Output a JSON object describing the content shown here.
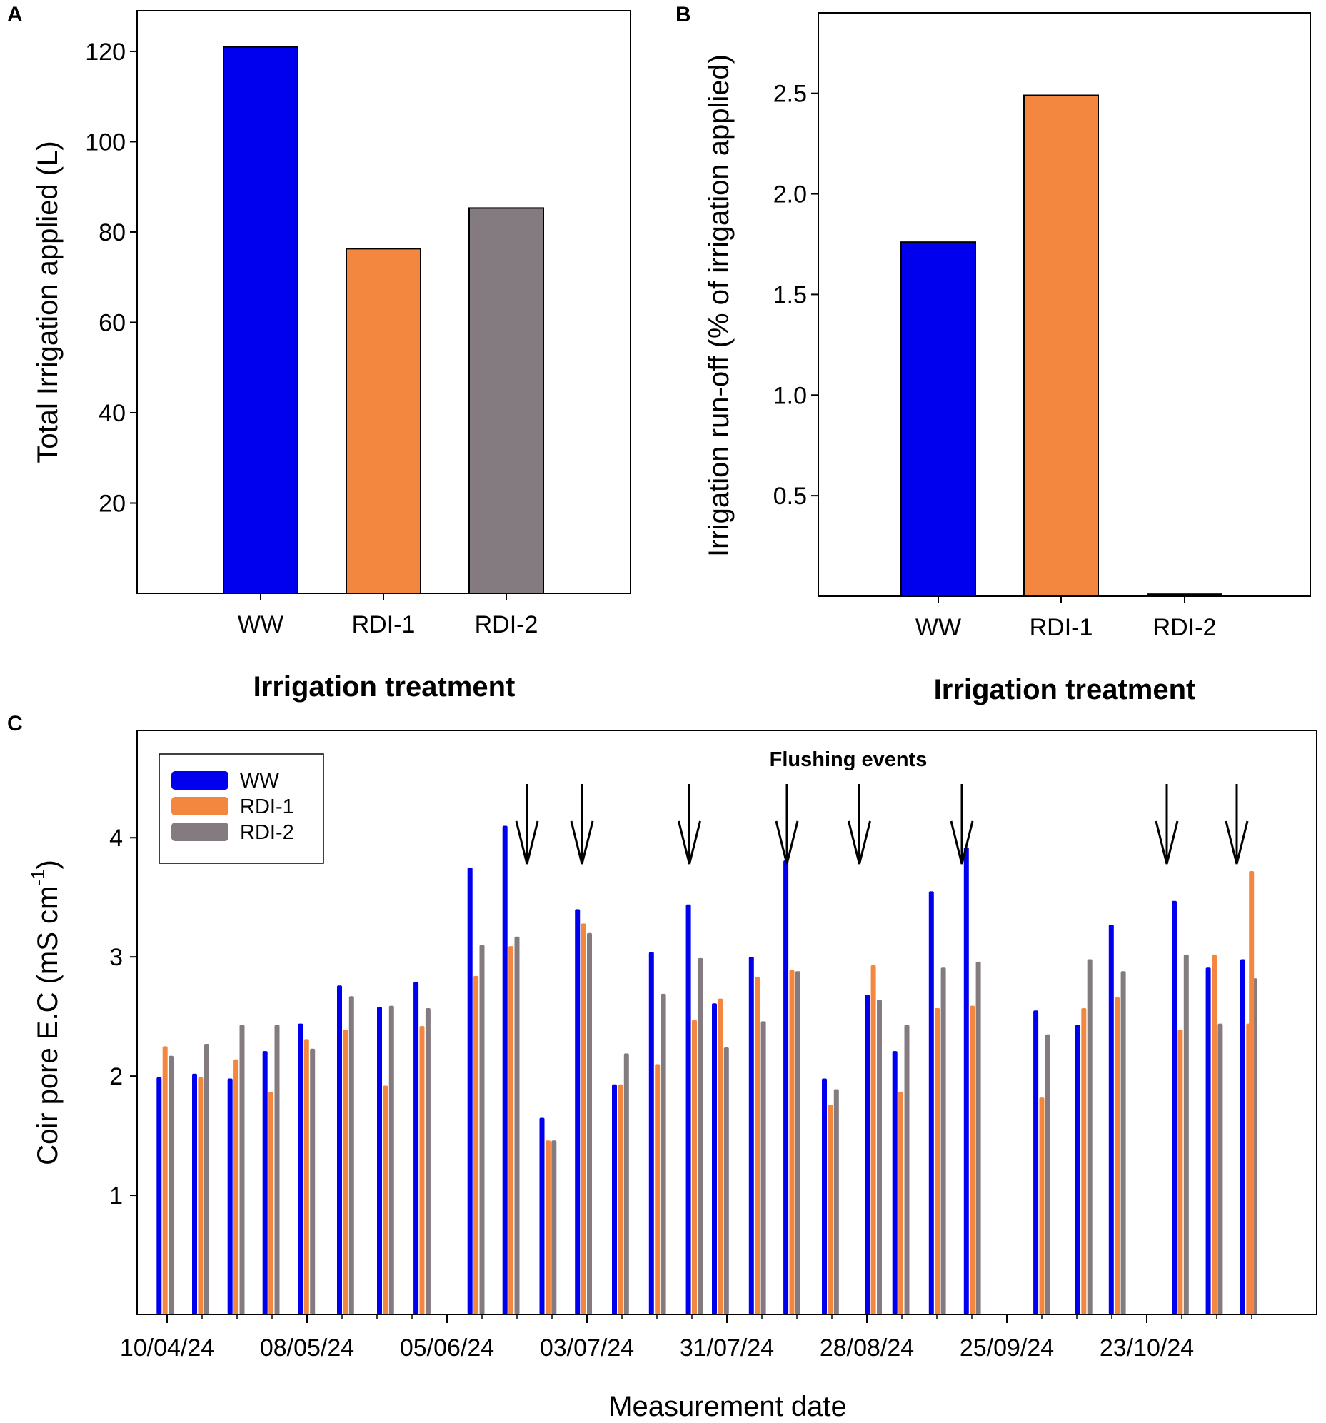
{
  "colors": {
    "ww": "#0000ee",
    "rdi1": "#f4873f",
    "rdi2": "#847b81"
  },
  "chart_data": [
    {
      "panel": "A",
      "type": "bar",
      "categories": [
        "WW",
        "RDI-1",
        "RDI-2"
      ],
      "values": [
        121,
        76.3,
        85.3
      ],
      "xlabel": "Irrigation treatment",
      "ylabel": "Total Irrigation applied (L)",
      "ylim": [
        0,
        129
      ],
      "yticks": [
        20,
        40,
        60,
        80,
        100,
        120
      ]
    },
    {
      "panel": "B",
      "type": "bar",
      "categories": [
        "WW",
        "RDI-1",
        "RDI-2"
      ],
      "values": [
        1.76,
        2.49,
        0.01
      ],
      "xlabel": "Irrigation treatment",
      "ylabel": "Irrigation run-off (% of irrigation applied)",
      "ylim": [
        0,
        2.9
      ],
      "yticks": [
        "0.5",
        "1.0",
        "1.5",
        "2.0",
        "2.5"
      ]
    },
    {
      "panel": "C",
      "type": "bar",
      "xlabel": "Measurement date",
      "ylabel": "Coir pore E.C (mS cm",
      "ylabel_sup": "-1",
      "ylabel_end": ")",
      "ylim": [
        0,
        4.9
      ],
      "yticks": [
        1,
        2,
        3,
        4
      ],
      "xlim_days": [
        -6,
        230
      ],
      "xticks": [
        {
          "day": 0,
          "label": "10/04/24"
        },
        {
          "day": 28,
          "label": "08/05/24"
        },
        {
          "day": 56,
          "label": "05/06/24"
        },
        {
          "day": 84,
          "label": "03/07/24"
        },
        {
          "day": 112,
          "label": "31/07/24"
        },
        {
          "day": 140,
          "label": "28/08/24"
        },
        {
          "day": 168,
          "label": "25/09/24"
        },
        {
          "day": 196,
          "label": "23/10/24"
        }
      ],
      "legend": [
        "WW",
        "RDI-1",
        "RDI-2"
      ],
      "annotation": "Flushing events",
      "flushing_event_days": [
        72,
        83,
        104.5,
        124,
        138.5,
        159,
        200,
        214
      ],
      "series": [
        {
          "name": "WW",
          "days": [
            -1.6,
            5.5,
            12.6,
            19.6,
            26.7,
            34.5,
            42.5,
            49.8,
            60.6,
            67.6,
            75,
            82.1,
            89.5,
            96.9,
            104.3,
            109.5,
            116.9,
            123.8,
            131.5,
            140.1,
            145.6,
            152.9,
            159.9,
            173.8,
            182.2,
            188.9,
            201.5,
            208.3,
            215.2
          ],
          "values": [
            1.99,
            2.02,
            1.98,
            2.21,
            2.44,
            2.76,
            2.58,
            2.79,
            3.75,
            4.1,
            1.65,
            3.4,
            1.93,
            3.04,
            3.44,
            2.61,
            3.0,
            3.81,
            1.98,
            2.68,
            2.21,
            3.55,
            3.92,
            2.55,
            2.43,
            3.27,
            3.47,
            2.91,
            2.98
          ]
        },
        {
          "name": "RDI-1",
          "days": [
            -0.4,
            6.7,
            13.8,
            20.8,
            27.9,
            35.7,
            43.7,
            51,
            61.8,
            68.8,
            76.2,
            83.3,
            90.7,
            98.1,
            105.5,
            110.7,
            118.1,
            125,
            132.7,
            141.3,
            146.8,
            154.1,
            161.1,
            175,
            183.4,
            190.1,
            202.7,
            209.5,
            216.4
          ],
          "values": [
            2.25,
            1.99,
            2.14,
            1.87,
            2.31,
            2.39,
            1.92,
            2.42,
            2.84,
            3.09,
            1.46,
            3.28,
            1.93,
            2.1,
            2.47,
            2.65,
            2.83,
            2.89,
            1.76,
            2.93,
            1.87,
            2.57,
            2.59,
            1.82,
            2.57,
            2.66,
            2.39,
            3.02,
            2.44
          ]
        },
        {
          "name": "RDI-2",
          "days": [
            0.8,
            7.9,
            15,
            22,
            29.1,
            36.9,
            44.9,
            52.2,
            63,
            70,
            77.4,
            84.5,
            91.9,
            99.3,
            106.7,
            111.9,
            119.3,
            126.2,
            133.9,
            142.5,
            148,
            155.3,
            162.3,
            176.2,
            184.6,
            191.3,
            203.9,
            210.7,
            217.6
          ],
          "values": [
            2.17,
            2.27,
            2.43,
            2.43,
            2.23,
            2.67,
            2.59,
            2.57,
            3.1,
            3.17,
            1.46,
            3.2,
            2.19,
            2.69,
            2.99,
            2.24,
            2.46,
            2.88,
            1.89,
            2.64,
            2.43,
            2.91,
            2.96,
            2.35,
            2.98,
            2.88,
            3.02,
            2.44,
            2.82
          ]
        }
      ],
      "series_extra": {
        "name": "RDI-1",
        "day": 217.6,
        "value": 3.72
      }
    }
  ]
}
